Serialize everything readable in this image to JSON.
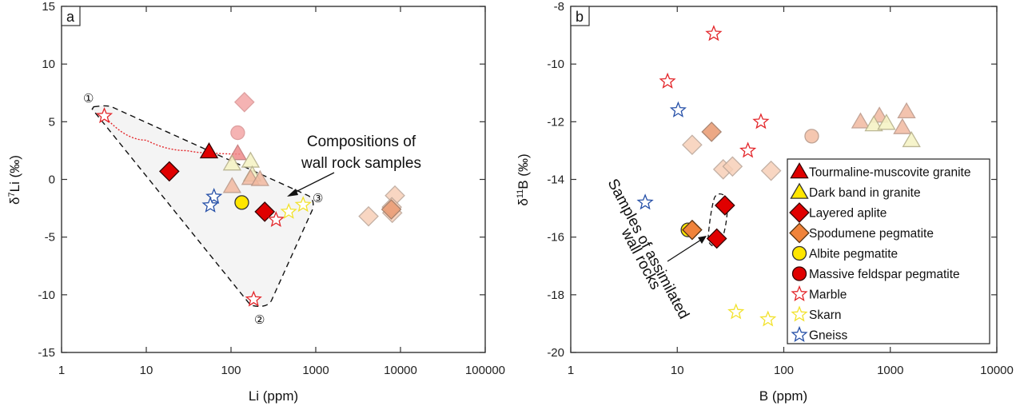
{
  "styles": {
    "tourmaline": {
      "shape": "triangle",
      "fill": "#e00000",
      "stroke": "#300"
    },
    "darkband": {
      "shape": "triangle",
      "fill": "#ffe600",
      "stroke": "#333"
    },
    "aplite": {
      "shape": "diamond",
      "fill": "#e00000",
      "stroke": "#300"
    },
    "spodumene": {
      "shape": "diamond",
      "fill": "#f0833a",
      "stroke": "#5a3310"
    },
    "albite": {
      "shape": "circle",
      "fill": "#ffe600",
      "stroke": "#333"
    },
    "massive": {
      "shape": "circle",
      "fill": "#e00000",
      "stroke": "#300"
    },
    "marble": {
      "shape": "star",
      "fill": "#ffffff",
      "stroke": "#e3262a"
    },
    "skarn": {
      "shape": "star",
      "fill": "#ffffff",
      "stroke": "#f2e22c"
    },
    "gneiss": {
      "shape": "star",
      "fill": "#ffffff",
      "stroke": "#2650a8"
    },
    "lit_pink_diamond": {
      "shape": "diamond",
      "fill": "#f4a6a6",
      "stroke": "#d89090",
      "opacity": 0.85
    },
    "lit_pink_circle": {
      "shape": "circle",
      "fill": "#f4a6a6",
      "stroke": "#d89090",
      "opacity": 0.85
    },
    "lit_pink_triangle": {
      "shape": "triangle",
      "fill": "#ef8a8a",
      "stroke": "#c07070",
      "opacity": 0.85
    },
    "lit_yellow_triangle": {
      "shape": "triangle",
      "fill": "#f6f3c6",
      "stroke": "#b5b08a",
      "opacity": 0.9
    },
    "lit_orange_triangle": {
      "shape": "triangle",
      "fill": "#f2b9a0",
      "stroke": "#b89484",
      "opacity": 0.85
    },
    "lit_orange_diamond": {
      "shape": "diamond",
      "fill": "#f7d0b8",
      "stroke": "#b9a395",
      "opacity": 0.85
    },
    "lit_orange_diamond_dark": {
      "shape": "diamond",
      "fill": "#eb9f78",
      "stroke": "#a07a65",
      "opacity": 0.9
    },
    "lit_orange_circle": {
      "shape": "circle",
      "fill": "#f5c2a8",
      "stroke": "#b99a8a",
      "opacity": 0.9
    }
  },
  "chart_data": [
    {
      "type": "scatter",
      "panel_label": "a",
      "xlabel": "Li (ppm)",
      "ylabel": "δ7Li (‰)",
      "ylabel_main": "δ",
      "ylabel_sup": "7",
      "ylabel_rest": "Li (‰)",
      "xscale": "log",
      "xlim": [
        1,
        100000
      ],
      "ylim": [
        -15,
        15
      ],
      "xticks": [
        1,
        10,
        100,
        1000,
        10000,
        100000
      ],
      "xtick_labels": [
        "1",
        "10",
        "100",
        "1000",
        "10000",
        "100000"
      ],
      "yticks": [
        -15,
        -10,
        -5,
        0,
        5,
        10,
        15
      ],
      "ytick_labels": [
        "-15",
        "-10",
        "-5",
        "0",
        "5",
        "10",
        "15"
      ],
      "grid": false,
      "points": [
        {
          "style": "lit_orange_diamond",
          "x": 4200,
          "y": -3.2
        },
        {
          "style": "lit_orange_diamond",
          "x": 8600,
          "y": -1.4
        },
        {
          "style": "lit_orange_diamond",
          "x": 8000,
          "y": -2.9
        },
        {
          "style": "lit_orange_diamond",
          "x": 7900,
          "y": -2.4
        },
        {
          "style": "lit_orange_diamond_dark",
          "x": 7800,
          "y": -2.6
        },
        {
          "style": "lit_pink_diamond",
          "x": 144,
          "y": 6.7
        },
        {
          "style": "lit_pink_circle",
          "x": 120,
          "y": 4.05
        },
        {
          "style": "lit_pink_triangle",
          "x": 120,
          "y": 2.25
        },
        {
          "style": "lit_yellow_triangle",
          "x": 103,
          "y": 1.35
        },
        {
          "style": "lit_yellow_triangle",
          "x": 170,
          "y": 1.6
        },
        {
          "style": "lit_yellow_triangle",
          "x": 178,
          "y": 0.4
        },
        {
          "style": "lit_orange_triangle",
          "x": 170,
          "y": 0.1
        },
        {
          "style": "lit_orange_triangle",
          "x": 220,
          "y": 0.0
        },
        {
          "style": "lit_orange_triangle",
          "x": 103,
          "y": -0.6
        },
        {
          "style": "tourmaline",
          "x": 55,
          "y": 2.4
        },
        {
          "style": "aplite",
          "x": 18.7,
          "y": 0.7
        },
        {
          "style": "aplite",
          "x": 250,
          "y": -2.8
        },
        {
          "style": "albite",
          "x": 134,
          "y": -2.0
        },
        {
          "style": "gneiss",
          "x": 63,
          "y": -1.5
        },
        {
          "style": "gneiss",
          "x": 57,
          "y": -2.25
        },
        {
          "style": "marble",
          "x": 3.2,
          "y": 5.5
        },
        {
          "style": "marble",
          "x": 340,
          "y": -3.5
        },
        {
          "style": "marble",
          "x": 185,
          "y": -10.4
        },
        {
          "style": "skarn",
          "x": 480,
          "y": -2.8
        },
        {
          "style": "skarn",
          "x": 710,
          "y": -2.2
        }
      ],
      "field_outline": [
        [
          2.4,
          6.3
        ],
        [
          3.5,
          6.4
        ],
        [
          900,
          -1.5
        ],
        [
          920,
          -2.3
        ],
        [
          300,
          -10.5
        ],
        [
          230,
          -11.1
        ],
        [
          170,
          -10.9
        ],
        [
          2.3,
          6.1
        ]
      ],
      "mixing_curve": [
        [
          3.2,
          5.5
        ],
        [
          10,
          3.4
        ],
        [
          30,
          2.5
        ],
        [
          55,
          2.3
        ],
        [
          130,
          2.2
        ]
      ],
      "annotations": {
        "label_1": "①",
        "label_2": "②",
        "label_3": "③",
        "text_line1": "Compositions of",
        "text_line2": "wall rock samples"
      }
    },
    {
      "type": "scatter",
      "panel_label": "b",
      "xlabel": "B (ppm)",
      "ylabel_main": "δ",
      "ylabel_sup": "11",
      "ylabel_rest": "B (‰)",
      "xscale": "log",
      "xlim": [
        1,
        10000
      ],
      "ylim": [
        -20,
        -8
      ],
      "xticks": [
        1,
        10,
        100,
        1000,
        10000
      ],
      "xtick_labels": [
        "1",
        "10",
        "100",
        "1000",
        "10000"
      ],
      "yticks": [
        -20,
        -18,
        -16,
        -14,
        -12,
        -10,
        -8
      ],
      "ytick_labels": [
        "-20",
        "-18",
        "-16",
        "-14",
        "-12",
        "-10",
        "-8"
      ],
      "grid": false,
      "points": [
        {
          "style": "lit_orange_diamond",
          "x": 13.8,
          "y": -12.8
        },
        {
          "style": "lit_orange_diamond_dark",
          "x": 21,
          "y": -12.35
        },
        {
          "style": "lit_orange_diamond",
          "x": 27,
          "y": -13.65
        },
        {
          "style": "lit_orange_diamond",
          "x": 33,
          "y": -13.55
        },
        {
          "style": "lit_orange_diamond",
          "x": 76,
          "y": -13.7
        },
        {
          "style": "lit_orange_circle",
          "x": 183,
          "y": -12.5
        },
        {
          "style": "lit_orange_triangle",
          "x": 525,
          "y": -12.0
        },
        {
          "style": "lit_orange_triangle",
          "x": 790,
          "y": -11.8
        },
        {
          "style": "lit_orange_triangle",
          "x": 1420,
          "y": -11.65
        },
        {
          "style": "lit_orange_triangle",
          "x": 1300,
          "y": -12.2
        },
        {
          "style": "lit_yellow_triangle",
          "x": 700,
          "y": -12.1
        },
        {
          "style": "lit_yellow_triangle",
          "x": 920,
          "y": -12.05
        },
        {
          "style": "lit_yellow_triangle",
          "x": 1580,
          "y": -12.65
        },
        {
          "style": "marble",
          "x": 22,
          "y": -8.95
        },
        {
          "style": "marble",
          "x": 8.1,
          "y": -10.6
        },
        {
          "style": "marble",
          "x": 61,
          "y": -12.0
        },
        {
          "style": "marble",
          "x": 46,
          "y": -13.0
        },
        {
          "style": "gneiss",
          "x": 10.2,
          "y": -11.6
        },
        {
          "style": "gneiss",
          "x": 5.0,
          "y": -14.8
        },
        {
          "style": "albite",
          "x": 12.6,
          "y": -15.75
        },
        {
          "style": "spodumene",
          "x": 13.8,
          "y": -15.75
        },
        {
          "style": "aplite",
          "x": 28,
          "y": -14.9
        },
        {
          "style": "aplite",
          "x": 23.5,
          "y": -16.05
        },
        {
          "style": "skarn",
          "x": 35.6,
          "y": -18.6
        },
        {
          "style": "skarn",
          "x": 71,
          "y": -18.85
        }
      ],
      "annotations": {
        "text_line1": "Samples of assimilated",
        "text_line2": "wall rocks"
      },
      "legend": {
        "placement": "lower-right",
        "entries": [
          {
            "style": "tourmaline",
            "label": "Tourmaline-muscovite granite"
          },
          {
            "style": "darkband",
            "label": "Dark band in granite"
          },
          {
            "style": "aplite",
            "label": "Layered aplite"
          },
          {
            "style": "spodumene",
            "label": "Spodumene pegmatite"
          },
          {
            "style": "albite",
            "label": "Albite pegmatite"
          },
          {
            "style": "massive",
            "label": "Massive feldspar pegmatite"
          },
          {
            "style": "marble",
            "label": "Marble"
          },
          {
            "style": "skarn",
            "label": "Skarn"
          },
          {
            "style": "gneiss",
            "label": "Gneiss"
          }
        ]
      }
    }
  ]
}
